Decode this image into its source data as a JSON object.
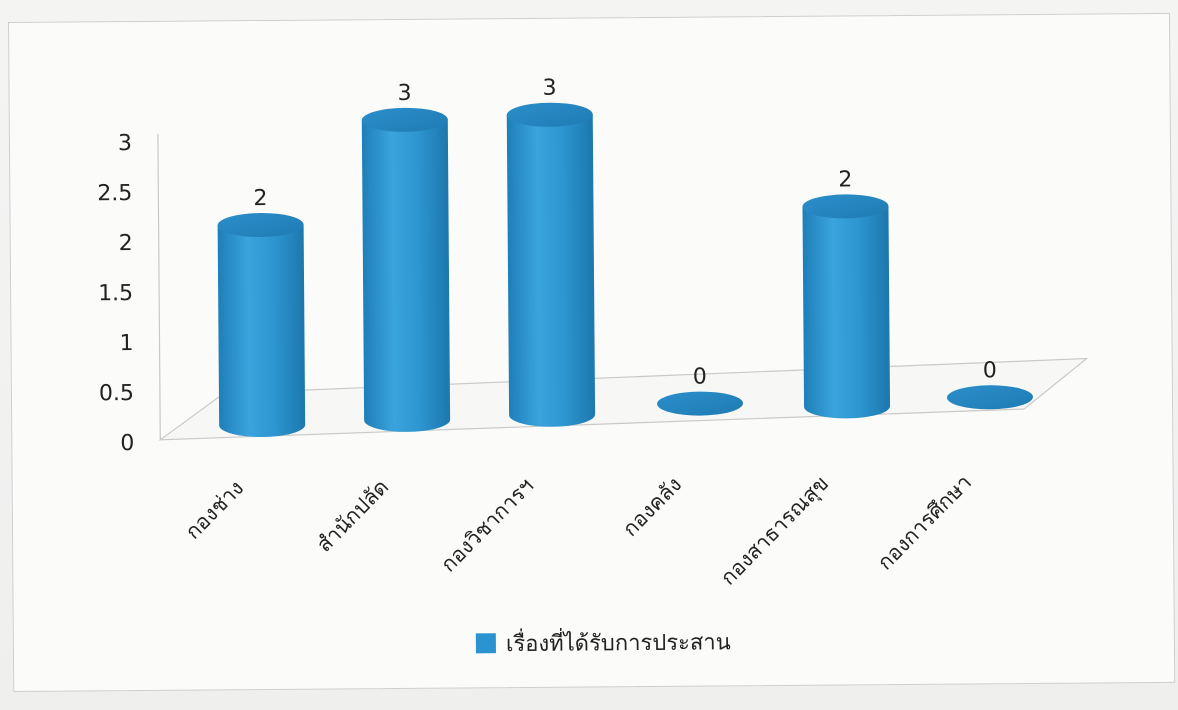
{
  "chart_data": {
    "type": "bar",
    "style": "3d-cylinder",
    "categories": [
      "กองช่าง",
      "สำนักปลัด",
      "กองวิชาการฯ",
      "กองคลัง",
      "กองสาธารณสุข",
      "กองการศึกษา"
    ],
    "series": [
      {
        "name": "เรื่องที่ได้รับการประสาน",
        "values": [
          2,
          3,
          3,
          0,
          2,
          0
        ],
        "color": "#2b93cf"
      }
    ],
    "data_labels": [
      "2",
      "3",
      "3",
      "0",
      "2",
      "0"
    ],
    "yticks": [
      "0",
      "0.5",
      "1",
      "1.5",
      "2",
      "2.5",
      "3"
    ],
    "ylim": [
      0,
      3
    ],
    "grid": false,
    "legend": "bottom",
    "title": "",
    "xlabel": "",
    "ylabel": ""
  }
}
